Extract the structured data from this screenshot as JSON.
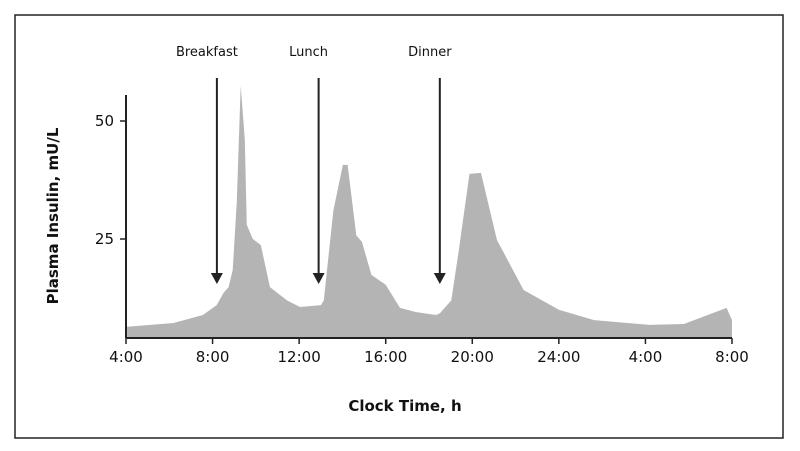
{
  "chart_data": {
    "type": "area",
    "title": "",
    "xlabel": "Clock Time, h",
    "ylabel": "Plasma Insulin, mU/L",
    "x_unit": "hours since midnight of day 1 (4 = 4:00, 32 = 8:00 next day)",
    "xlim": [
      4,
      32
    ],
    "ylim": [
      4.3,
      58
    ],
    "x_ticks": [
      {
        "value": 4,
        "label": "4:00"
      },
      {
        "value": 8,
        "label": "8:00"
      },
      {
        "value": 12,
        "label": "12:00"
      },
      {
        "value": 16,
        "label": "16:00"
      },
      {
        "value": 20,
        "label": "20:00"
      },
      {
        "value": 24,
        "label": "24:00"
      },
      {
        "value": 28,
        "label": "4:00"
      },
      {
        "value": 32,
        "label": "8:00"
      }
    ],
    "y_ticks": [
      {
        "value": 25,
        "label": "25"
      },
      {
        "value": 50,
        "label": "50"
      }
    ],
    "grid": false,
    "fill_color": "#b4b4b4",
    "series": [
      {
        "name": "Plasma insulin",
        "x": [
          4.05,
          6.2,
          7.55,
          8.19,
          8.51,
          8.74,
          8.93,
          9.12,
          9.3,
          9.49,
          9.58,
          9.86,
          10.23,
          10.65,
          11.44,
          12.04,
          13.01,
          13.14,
          13.58,
          14.02,
          14.24,
          14.64,
          14.9,
          15.34,
          16.0,
          16.66,
          17.41,
          18.33,
          18.51,
          19.03,
          19.38,
          19.87,
          20.4,
          21.14,
          22.37,
          24.0,
          25.63,
          28.2,
          29.78,
          31.75,
          32.0
        ],
        "y": [
          6.4,
          7.2,
          8.9,
          11.0,
          13.6,
          14.8,
          18.4,
          33.0,
          57.5,
          46.0,
          28.0,
          25.0,
          23.7,
          14.8,
          12.0,
          10.6,
          11.0,
          12.0,
          31.0,
          40.7,
          40.7,
          25.8,
          24.4,
          17.4,
          15.3,
          10.4,
          9.5,
          8.9,
          9.3,
          12.0,
          22.7,
          38.8,
          39.0,
          24.8,
          14.2,
          10.0,
          7.8,
          6.8,
          7.0,
          10.4,
          7.8
        ]
      }
    ],
    "annotations": [
      {
        "label": "Breakfast",
        "x": 8.2
      },
      {
        "label": "Lunch",
        "x": 12.9
      },
      {
        "label": "Dinner",
        "x": 18.5
      }
    ]
  }
}
